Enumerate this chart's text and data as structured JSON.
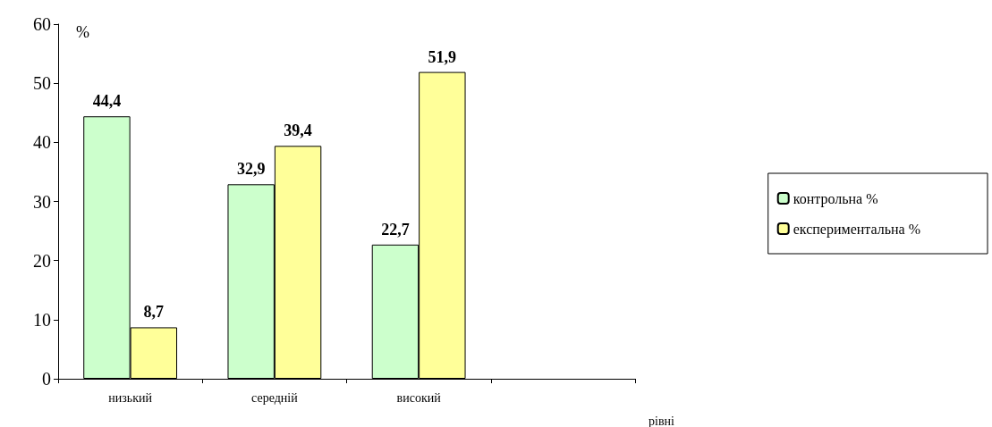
{
  "chart_data": {
    "type": "bar",
    "xlabel": "рівні",
    "ylabel": "%",
    "categories": [
      "низький",
      "середній",
      "високий",
      null
    ],
    "series": [
      {
        "name": "контрольна %",
        "color": "#ccffcc",
        "values": [
          44.4,
          32.9,
          22.7,
          null
        ],
        "value_labels": [
          "44,4",
          "32,9",
          "22,7",
          null
        ]
      },
      {
        "name": "експериментальна %",
        "color": "#ffff99",
        "values": [
          8.7,
          39.4,
          51.9,
          null
        ],
        "value_labels": [
          "8,7",
          "39,4",
          "51,9",
          null
        ]
      }
    ],
    "ylim": [
      0,
      60
    ],
    "yticks": [
      0,
      10,
      20,
      30,
      40,
      50,
      60
    ],
    "grid": false,
    "legend": "right"
  }
}
